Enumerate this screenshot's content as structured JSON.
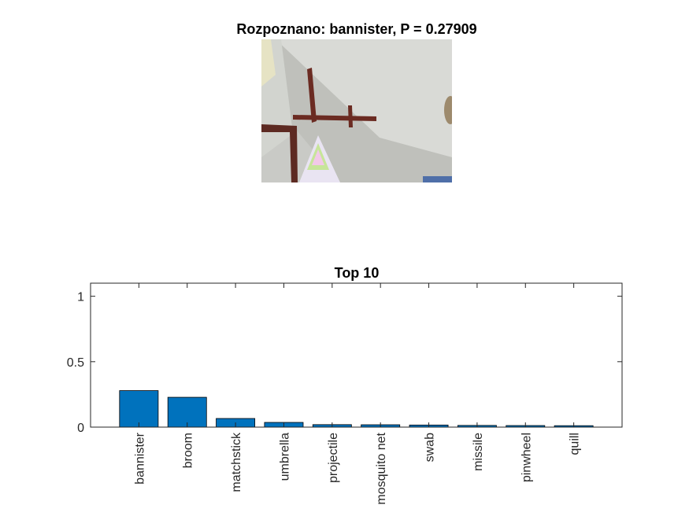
{
  "figure": {
    "image_title": "Rozpoznano: bannister, P = 0.27909"
  },
  "chart_data": {
    "type": "bar",
    "title": "Top 10",
    "xlabel": "",
    "ylabel": "",
    "categories": [
      "bannister",
      "broom",
      "matchstick",
      "umbrella",
      "projectile",
      "mosquito net",
      "swab",
      "missile",
      "pinwheel",
      "quill"
    ],
    "values": [
      0.279,
      0.228,
      0.066,
      0.036,
      0.019,
      0.018,
      0.016,
      0.013,
      0.012,
      0.011
    ],
    "ylim": [
      0,
      1
    ],
    "yticks": [
      0,
      0.5,
      1
    ],
    "ytick_labels": [
      "0",
      "0.5",
      "1"
    ],
    "bar_color": "#0072BD",
    "grid": false,
    "legend": "none"
  }
}
